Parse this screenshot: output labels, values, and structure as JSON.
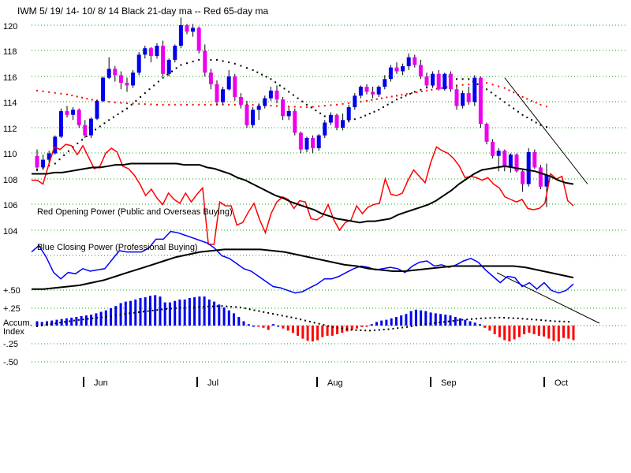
{
  "chart_data": {
    "type": "candlestick",
    "title": "IWM   5/ 19/ 14- 10/ 8/ 14    Black 21-day ma --  Red 65-day ma",
    "price_axis": {
      "ticks": [
        "120",
        "118",
        "116",
        "114",
        "112",
        "110",
        "108",
        "106",
        "104"
      ],
      "range": [
        103,
        121
      ]
    },
    "indicator_axis": {
      "ticks": [
        "+.50",
        "+.25",
        "Accum.",
        "Index",
        "-.25",
        "-.50"
      ]
    },
    "month_labels": [
      "Jun",
      "Jul",
      "Aug",
      "Sep",
      "Oct"
    ],
    "grid": "dotted horizontal",
    "labels": {
      "opening_power": "Red Opening Power (Public and Overseas Buying)",
      "closing_power": "Blue Closing Power (Professional Buying)"
    },
    "colors": {
      "up_candle": "#0000ee",
      "down_candle": "#ee00ee",
      "ma21": "#000000",
      "ma65": "#ff0000",
      "opening_power": "#ff0000",
      "closing_power": "#0000ff",
      "accum_positive": "#0000ee",
      "accum_negative": "#ff0000"
    },
    "candles": [
      [
        109.8,
        110.3,
        108.6,
        108.9
      ],
      [
        108.9,
        109.9,
        108.7,
        109.5
      ],
      [
        109.5,
        110.2,
        109.3,
        110.0
      ],
      [
        110.0,
        111.4,
        109.9,
        111.3
      ],
      [
        111.3,
        113.5,
        111.2,
        113.3
      ],
      [
        113.3,
        113.7,
        112.8,
        113.0
      ],
      [
        113.0,
        113.6,
        112.6,
        113.4
      ],
      [
        113.4,
        113.5,
        112.0,
        112.2
      ],
      [
        112.2,
        112.6,
        111.2,
        111.4
      ],
      [
        111.4,
        112.8,
        111.2,
        112.7
      ],
      [
        112.7,
        114.2,
        112.6,
        114.1
      ],
      [
        114.1,
        116.0,
        114.0,
        115.9
      ],
      [
        115.9,
        117.5,
        115.8,
        116.6
      ],
      [
        116.6,
        116.8,
        115.6,
        116.1
      ],
      [
        116.1,
        116.4,
        115.0,
        115.5
      ],
      [
        115.5,
        115.9,
        114.8,
        115.3
      ],
      [
        115.3,
        116.5,
        115.1,
        116.3
      ],
      [
        116.3,
        117.9,
        116.1,
        117.7
      ],
      [
        117.7,
        118.4,
        117.4,
        118.2
      ],
      [
        118.2,
        118.3,
        117.1,
        117.6
      ],
      [
        117.6,
        118.6,
        117.4,
        118.4
      ],
      [
        118.4,
        118.8,
        116.0,
        116.2
      ],
      [
        116.2,
        117.4,
        116.0,
        117.3
      ],
      [
        117.3,
        118.5,
        117.1,
        118.4
      ],
      [
        118.4,
        120.6,
        118.2,
        120.0
      ],
      [
        120.0,
        120.1,
        119.3,
        119.5
      ],
      [
        119.5,
        120.1,
        119.1,
        119.8
      ],
      [
        119.8,
        119.9,
        117.8,
        118.0
      ],
      [
        118.0,
        118.5,
        116.0,
        116.3
      ],
      [
        116.3,
        116.6,
        115.0,
        115.4
      ],
      [
        115.4,
        115.7,
        113.8,
        114.0
      ],
      [
        114.0,
        115.2,
        113.8,
        115.0
      ],
      [
        115.0,
        116.5,
        114.9,
        116.0
      ],
      [
        116.0,
        116.2,
        114.1,
        114.4
      ],
      [
        114.4,
        114.7,
        113.5,
        113.8
      ],
      [
        113.8,
        114.1,
        112.0,
        112.2
      ],
      [
        112.2,
        113.6,
        112.0,
        113.4
      ],
      [
        113.4,
        113.9,
        112.6,
        113.7
      ],
      [
        113.7,
        114.5,
        113.5,
        114.3
      ],
      [
        114.3,
        115.2,
        114.1,
        114.9
      ],
      [
        114.9,
        115.3,
        113.9,
        114.2
      ],
      [
        114.2,
        114.4,
        112.6,
        112.9
      ],
      [
        112.9,
        113.6,
        112.6,
        113.3
      ],
      [
        113.3,
        113.5,
        111.4,
        111.6
      ],
      [
        111.6,
        111.7,
        110.0,
        110.3
      ],
      [
        110.3,
        111.3,
        110.1,
        111.2
      ],
      [
        111.2,
        111.4,
        110.0,
        110.4
      ],
      [
        110.4,
        111.5,
        110.2,
        111.4
      ],
      [
        111.4,
        112.6,
        111.2,
        112.4
      ],
      [
        112.4,
        113.2,
        112.2,
        113.0
      ],
      [
        113.0,
        113.1,
        111.8,
        112.0
      ],
      [
        112.0,
        113.1,
        111.8,
        112.6
      ],
      [
        112.6,
        113.8,
        112.4,
        113.6
      ],
      [
        113.6,
        114.7,
        113.4,
        114.5
      ],
      [
        114.5,
        115.3,
        114.3,
        115.2
      ],
      [
        115.2,
        115.4,
        114.6,
        114.8
      ],
      [
        114.8,
        115.2,
        114.3,
        114.6
      ],
      [
        114.6,
        115.3,
        114.4,
        115.2
      ],
      [
        115.2,
        116.1,
        115.0,
        115.8
      ],
      [
        115.8,
        116.9,
        115.6,
        116.7
      ],
      [
        116.7,
        117.1,
        116.2,
        116.4
      ],
      [
        116.4,
        117.0,
        116.1,
        116.8
      ],
      [
        116.8,
        117.8,
        116.5,
        117.5
      ],
      [
        117.5,
        117.7,
        116.7,
        116.9
      ],
      [
        116.9,
        117.3,
        115.8,
        116.0
      ],
      [
        116.0,
        116.3,
        115.1,
        115.3
      ],
      [
        115.3,
        116.4,
        115.1,
        116.2
      ],
      [
        116.2,
        116.5,
        114.9,
        115.0
      ],
      [
        115.0,
        116.3,
        114.9,
        116.2
      ],
      [
        116.2,
        116.4,
        114.8,
        115.0
      ],
      [
        115.0,
        115.3,
        113.4,
        113.7
      ],
      [
        113.7,
        114.9,
        113.5,
        114.7
      ],
      [
        114.7,
        115.2,
        113.8,
        114.0
      ],
      [
        114.0,
        116.1,
        113.7,
        115.9
      ],
      [
        115.9,
        116.0,
        112.0,
        112.3
      ],
      [
        112.3,
        112.4,
        110.7,
        110.9
      ],
      [
        110.9,
        111.1,
        109.6,
        109.8
      ],
      [
        109.8,
        110.4,
        108.6,
        110.2
      ],
      [
        110.2,
        110.3,
        108.6,
        108.9
      ],
      [
        108.9,
        110.0,
        108.5,
        109.9
      ],
      [
        109.9,
        110.0,
        108.5,
        108.6
      ],
      [
        108.6,
        108.8,
        107.0,
        107.6
      ],
      [
        107.6,
        110.4,
        107.4,
        110.1
      ],
      [
        110.1,
        110.3,
        108.8,
        108.9
      ],
      [
        108.9,
        109.1,
        107.2,
        107.4
      ],
      [
        107.4,
        109.2,
        105.8,
        108.3
      ]
    ],
    "ma21_dotted": [
      [
        0,
        108.7
      ],
      [
        3,
        109.2
      ],
      [
        6,
        110.5
      ],
      [
        9,
        111.6
      ],
      [
        12,
        112.6
      ],
      [
        15,
        113.5
      ],
      [
        18,
        114.7
      ],
      [
        21,
        115.9
      ],
      [
        24,
        116.9
      ],
      [
        27,
        117.3
      ],
      [
        30,
        117.3
      ],
      [
        33,
        117.0
      ],
      [
        36,
        116.5
      ],
      [
        39,
        115.8
      ],
      [
        42,
        114.8
      ],
      [
        45,
        113.8
      ],
      [
        48,
        112.9
      ],
      [
        51,
        112.4
      ],
      [
        54,
        112.8
      ],
      [
        57,
        113.4
      ],
      [
        60,
        114.2
      ],
      [
        63,
        114.8
      ],
      [
        66,
        115.3
      ],
      [
        69,
        115.8
      ],
      [
        72,
        115.8
      ],
      [
        75,
        115.0
      ],
      [
        78,
        114.0
      ],
      [
        81,
        113.0
      ],
      [
        84,
        112.2
      ],
      [
        86,
        111.9
      ]
    ],
    "ma65_dotted": [
      [
        0,
        114.9
      ],
      [
        5,
        114.6
      ],
      [
        10,
        114.1
      ],
      [
        15,
        113.9
      ],
      [
        20,
        113.8
      ],
      [
        25,
        113.8
      ],
      [
        30,
        113.8
      ],
      [
        35,
        113.8
      ],
      [
        40,
        113.7
      ],
      [
        45,
        113.6
      ],
      [
        50,
        113.8
      ],
      [
        55,
        114.1
      ],
      [
        60,
        114.5
      ],
      [
        65,
        114.9
      ],
      [
        70,
        115.3
      ],
      [
        75,
        115.5
      ],
      [
        78,
        115.1
      ],
      [
        81,
        114.4
      ],
      [
        84,
        113.8
      ],
      [
        86,
        113.5
      ]
    ],
    "opening_power": [
      107.9,
      107.9,
      107.6,
      109.1,
      110.5,
      110.3,
      110.7,
      110.6,
      109.9,
      110.6,
      109.7,
      108.8,
      109.0,
      110.0,
      110.4,
      110.1,
      109.0,
      108.8,
      108.3,
      107.6,
      106.7,
      107.2,
      106.5,
      106.0,
      106.9,
      106.4,
      106.1,
      106.9,
      106.2,
      106.8,
      107.3,
      102.9,
      102.9,
      106.2,
      105.9,
      105.9,
      104.4,
      104.6,
      105.4,
      106.1,
      104.8,
      103.8,
      105.3,
      106.2,
      106.6,
      106.4,
      105.7,
      106.3,
      106.2,
      104.9,
      104.8,
      105.1,
      106.0,
      104.8,
      104.0,
      104.6,
      104.8,
      105.9,
      105.3,
      105.8,
      106.0,
      106.1,
      108.0,
      106.8,
      106.7,
      106.9,
      107.9,
      108.7,
      108.2,
      107.7,
      109.3,
      110.5,
      110.2,
      110.0,
      109.6,
      109.0,
      108.1,
      108.2,
      108.1,
      107.9,
      108.1,
      107.6,
      107.3,
      106.6,
      106.4,
      106.2,
      106.4,
      105.7,
      105.6,
      105.7,
      106.1,
      108.4,
      108.0,
      108.2,
      106.3,
      105.9
    ],
    "ma21_solid": [
      108.4,
      108.4,
      108.4,
      108.5,
      108.5,
      108.6,
      108.7,
      108.8,
      108.9,
      108.9,
      109.0,
      109.1,
      109.1,
      109.2,
      109.2,
      109.2,
      109.2,
      109.2,
      109.2,
      109.2,
      109.1,
      109.1,
      109.1,
      108.9,
      108.8,
      108.6,
      108.4,
      108.1,
      107.9,
      107.6,
      107.3,
      107.0,
      106.7,
      106.5,
      106.2,
      106.0,
      105.8,
      105.6,
      105.3,
      105.1,
      104.9,
      104.8,
      104.7,
      104.6,
      104.7,
      104.7,
      104.8,
      104.9,
      105.2,
      105.4,
      105.6,
      105.8,
      106.0,
      106.3,
      106.7,
      107.1,
      107.6,
      108.0,
      108.4,
      108.7,
      108.8,
      108.9,
      109.0,
      108.9,
      108.8,
      108.7,
      108.6,
      108.4,
      108.2,
      107.9,
      107.7,
      107.6
    ],
    "closing_power": [
      102.3,
      102.8,
      101.9,
      100.7,
      100.2,
      100.7,
      100.6,
      101.0,
      100.8,
      100.9,
      101.0,
      101.7,
      102.4,
      102.3,
      102.3,
      102.3,
      102.6,
      103.3,
      103.3,
      103.9,
      103.8,
      103.6,
      103.4,
      103.2,
      103.0,
      102.6,
      102.0,
      101.8,
      101.4,
      101.0,
      100.8,
      100.4,
      100.0,
      99.6,
      99.5,
      99.3,
      99.1,
      99.2,
      99.5,
      99.8,
      100.2,
      100.2,
      100.4,
      100.7,
      101.0,
      101.2,
      101.1,
      100.9,
      101.0,
      101.1,
      101.0,
      100.7,
      101.2,
      101.5,
      101.6,
      101.2,
      101.3,
      101.1,
      101.3,
      101.6,
      101.8,
      101.5,
      100.9,
      100.4,
      99.9,
      100.4,
      100.3,
      99.6,
      99.9,
      99.4,
      99.9,
      99.3,
      99.1,
      99.3,
      99.8
    ],
    "cp_ma": [
      99.4,
      99.4,
      99.5,
      99.6,
      99.7,
      99.9,
      100.1,
      100.4,
      100.7,
      101.0,
      101.3,
      101.6,
      101.9,
      102.1,
      102.3,
      102.4,
      102.5,
      102.5,
      102.5,
      102.5,
      102.4,
      102.3,
      102.1,
      101.9,
      101.7,
      101.5,
      101.3,
      101.2,
      101.0,
      100.9,
      100.8,
      100.8,
      100.9,
      101.0,
      101.1,
      101.2,
      101.2,
      101.2,
      101.2,
      101.2,
      101.2,
      101.1,
      100.9,
      100.7,
      100.5,
      100.3
    ],
    "accum_index": [
      0.06,
      0.05,
      0.06,
      0.07,
      0.08,
      0.09,
      0.1,
      0.11,
      0.12,
      0.13,
      0.14,
      0.15,
      0.17,
      0.19,
      0.21,
      0.24,
      0.27,
      0.31,
      0.33,
      0.34,
      0.36,
      0.38,
      0.39,
      0.41,
      0.42,
      0.4,
      0.32,
      0.32,
      0.34,
      0.36,
      0.36,
      0.38,
      0.39,
      0.4,
      0.4,
      0.36,
      0.33,
      0.29,
      0.25,
      0.21,
      0.17,
      0.12,
      0.06,
      0.02,
      0.0,
      -0.01,
      -0.03,
      -0.06,
      0.02,
      0.0,
      -0.04,
      -0.07,
      -0.1,
      -0.14,
      -0.18,
      -0.21,
      -0.22,
      -0.2,
      -0.16,
      -0.14,
      -0.14,
      -0.12,
      -0.1,
      -0.08,
      -0.06,
      -0.04,
      -0.02,
      -0.01,
      0.02,
      0.05,
      0.07,
      0.08,
      0.1,
      0.12,
      0.14,
      0.16,
      0.2,
      0.22,
      0.21,
      0.2,
      0.18,
      0.17,
      0.16,
      0.15,
      0.14,
      0.12,
      0.1,
      0.08,
      0.06,
      0.04,
      0.02,
      -0.03,
      -0.07,
      -0.12,
      -0.16,
      -0.2,
      -0.22,
      -0.19,
      -0.16,
      -0.12,
      -0.1,
      -0.12,
      -0.14,
      -0.15,
      -0.18,
      -0.21,
      -0.22,
      -0.17,
      -0.18,
      -0.2
    ],
    "accum_ma": [
      -0.01,
      0.03,
      0.07,
      0.1,
      0.13,
      0.17,
      0.2,
      0.23,
      0.25,
      0.26,
      0.27,
      0.25,
      0.2,
      0.15,
      0.1,
      0.04,
      -0.02,
      -0.06,
      -0.07,
      -0.05,
      -0.02,
      0.02,
      0.05,
      0.08,
      0.1,
      0.11,
      0.1,
      0.08,
      0.06,
      0.05
    ]
  }
}
